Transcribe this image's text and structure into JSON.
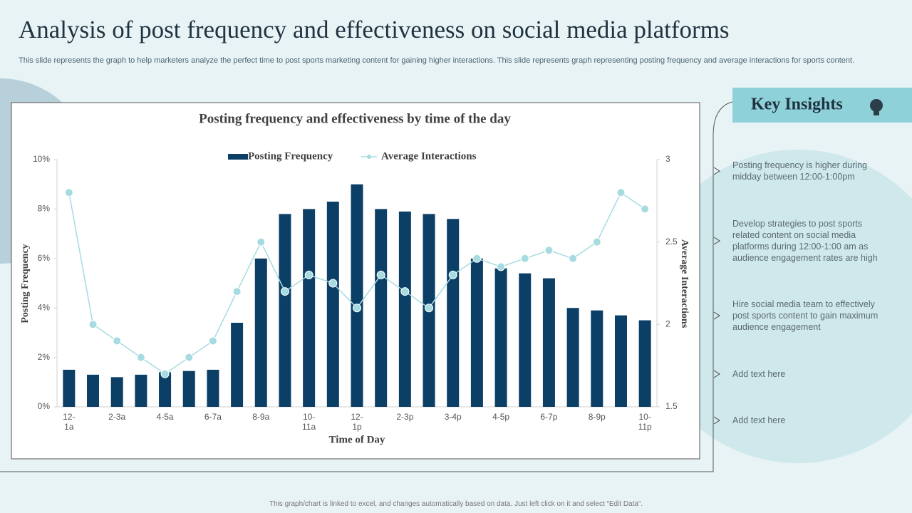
{
  "header": {
    "title": "Analysis of post frequency and effectiveness on social media platforms",
    "subtitle": "This slide represents the graph to help marketers analyze the perfect time to post sports marketing content for gaining higher interactions. This slide represents graph representing posting frequency and average interactions for sports content."
  },
  "insights": {
    "title": "Key Insights",
    "items": [
      "Posting frequency  is higher during midday between  12:00-1:00pm",
      "Develop  strategies to post sports related content on social media platforms during  12:00-1:00  am as audience engagement rates are high",
      "Hire social media team to effectively post sports content to gain maximum audience engagement",
      "Add text here",
      "Add text here"
    ]
  },
  "footer": "This graph/chart is linked to excel, and changes automatically based on data. Just left click on it and select “Edit Data”.",
  "chart_data": {
    "type": "bar-line",
    "title": "Posting  frequency and effectiveness by time of the day",
    "x_label": "Time of Day",
    "y_label": "Posting Frequency",
    "y2_label": "Average Interactions",
    "categories": [
      "12-1a",
      null,
      "2-3a",
      null,
      "4-5a",
      null,
      "6-7a",
      null,
      "8-9a",
      null,
      "10-11a",
      null,
      "12-1p",
      null,
      "2-3p",
      null,
      "3-4p",
      null,
      "4-5p",
      null,
      "6-7p",
      null,
      "8-9p",
      null,
      "10-11p"
    ],
    "series": [
      {
        "name": "Posting Frequency",
        "type": "bar",
        "color": "#0b3f66",
        "values": [
          1.5,
          1.3,
          1.2,
          1.3,
          1.4,
          1.45,
          1.5,
          3.4,
          6,
          7.8,
          8,
          8.3,
          9,
          8,
          7.9,
          7.8,
          7.6,
          6,
          5.6,
          5.4,
          5.2,
          4,
          3.9,
          3.7,
          3.5
        ]
      },
      {
        "name": "Average Interactions",
        "type": "line",
        "axis": "y2",
        "color": "#a6dbe0",
        "values": [
          2.8,
          2.0,
          1.9,
          1.8,
          1.7,
          1.8,
          1.9,
          2.2,
          2.5,
          2.2,
          2.3,
          2.25,
          2.1,
          2.3,
          2.2,
          2.1,
          2.3,
          2.4,
          2.35,
          2.4,
          2.45,
          2.4,
          2.5,
          2.8,
          2.7
        ]
      }
    ],
    "ylim": [
      0,
      10
    ],
    "yticks": [
      {
        "value": 0,
        "label": "0%"
      },
      {
        "value": 2,
        "label": "2%"
      },
      {
        "value": 4,
        "label": "4%"
      },
      {
        "value": 6,
        "label": "6%"
      },
      {
        "value": 8,
        "label": "8%"
      },
      {
        "value": 10,
        "label": "10%"
      }
    ],
    "y2lim": [
      1.5,
      3
    ],
    "y2ticks": [
      1.5,
      2,
      2.5,
      3
    ],
    "grid": false,
    "legend": "top"
  }
}
